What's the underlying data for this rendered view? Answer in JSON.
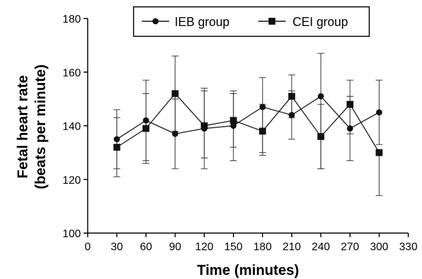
{
  "chart_data": {
    "type": "line",
    "title": "",
    "xlabel": "Time (minutes)",
    "ylabel": [
      "Fetal heart rate",
      "(beats per minute)"
    ],
    "xlim": [
      0,
      330
    ],
    "ylim": [
      100,
      180
    ],
    "x_ticks": [
      0,
      30,
      60,
      90,
      120,
      150,
      180,
      210,
      240,
      270,
      300,
      330
    ],
    "y_ticks": [
      100,
      120,
      140,
      160,
      180
    ],
    "grid": false,
    "legend_position": "top",
    "x": [
      30,
      60,
      90,
      120,
      150,
      180,
      210,
      240,
      270,
      300
    ],
    "series": [
      {
        "name": "IEB group",
        "marker": "circle",
        "values": [
          135,
          142,
          137,
          139,
          140,
          147,
          144,
          151,
          139,
          145
        ],
        "err_lower": [
          124,
          127,
          124,
          124,
          127,
          129,
          135,
          124,
          127,
          133
        ],
        "err_upper": [
          146,
          157,
          150,
          154,
          152,
          158,
          153,
          167,
          151,
          157
        ]
      },
      {
        "name": "CEI group",
        "marker": "square",
        "values": [
          132,
          139,
          152,
          140,
          142,
          138,
          151,
          136,
          148,
          130
        ],
        "err_lower": [
          121,
          126,
          138,
          128,
          132,
          130,
          143,
          124,
          137,
          114
        ],
        "err_upper": [
          143,
          152,
          166,
          153,
          153,
          148,
          159,
          148,
          157,
          131
        ]
      }
    ]
  }
}
